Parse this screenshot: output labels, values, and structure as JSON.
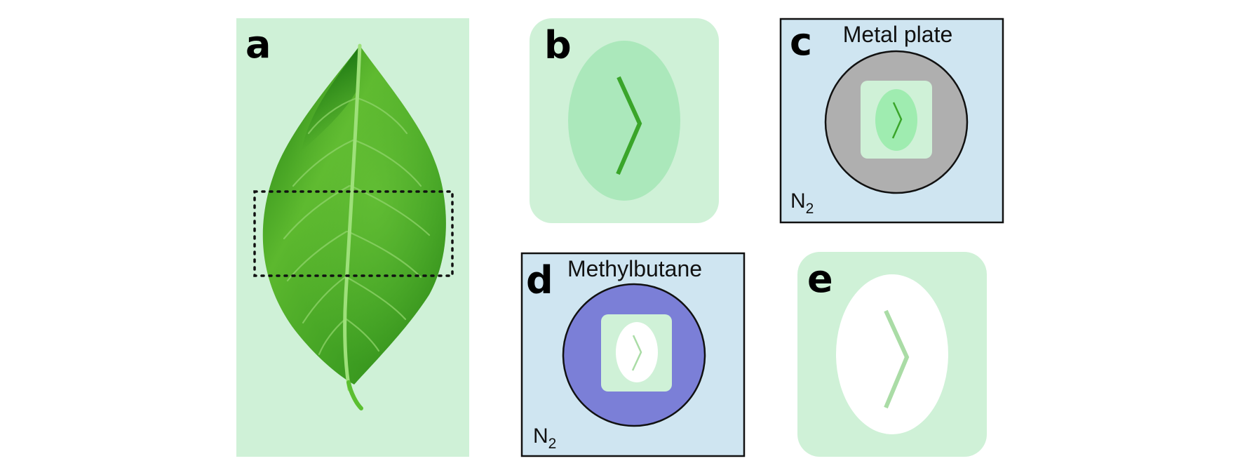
{
  "panels": {
    "a": {
      "letter": "a"
    },
    "b": {
      "letter": "b"
    },
    "c": {
      "letter": "c",
      "label": "Metal plate",
      "gas": "N",
      "gas_subscript": "2"
    },
    "d": {
      "letter": "d",
      "label": "Methylbutane",
      "gas": "N",
      "gas_subscript": "2"
    },
    "e": {
      "letter": "e"
    }
  },
  "colors": {
    "panel_background": "#cff1d7",
    "box_background": "#cfe5f1",
    "metal_plate": "#afafaf",
    "methylbutane": "#7b7fd7",
    "sample_b": "#abe8bb",
    "sample_c": "#9fecb0",
    "sample_d": "#ffffff",
    "sample_e": "#ffffff",
    "vein_fresh": "#3aa52a",
    "vein_pale": "#aadca6",
    "leaf_green": "#4caf28",
    "crop_box": "#111111"
  }
}
